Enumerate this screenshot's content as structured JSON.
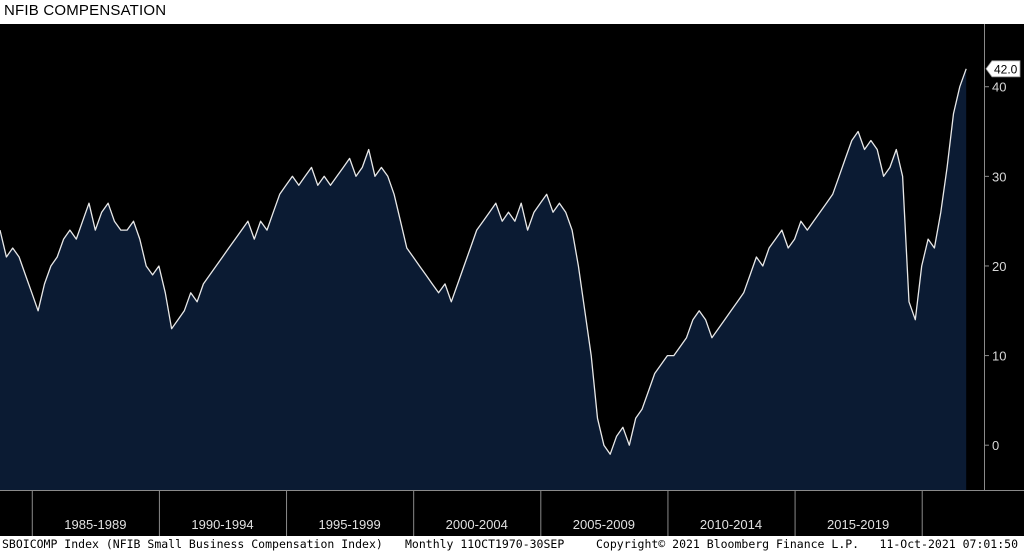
{
  "chart_data": {
    "type": "area",
    "title": "NFIB COMPENSATION",
    "xlabel": "",
    "ylabel": "",
    "ylim": [
      -5,
      47
    ],
    "xlim": [
      1983.75,
      2022.45
    ],
    "y_ticks": [
      0,
      10,
      20,
      30,
      40
    ],
    "y_tick_labels": [
      "0",
      "10",
      "20",
      "30",
      "40"
    ],
    "categories": [
      "1985-1989",
      "1990-1994",
      "1995-1999",
      "2000-2004",
      "2005-2009",
      "2010-2014",
      "2015-2019"
    ],
    "category_ranges": [
      [
        1985,
        1990
      ],
      [
        1990,
        1995
      ],
      [
        1995,
        2000
      ],
      [
        2000,
        2005
      ],
      [
        2005,
        2010
      ],
      [
        2010,
        2015
      ],
      [
        2015,
        2020
      ]
    ],
    "grid": false,
    "legend": "none",
    "last_value_label": "42.0",
    "series": [
      {
        "x": [
          1983.75,
          1984.0,
          1984.25,
          1984.5,
          1984.75,
          1985.0,
          1985.25,
          1985.5,
          1985.75,
          1986.0,
          1986.25,
          1986.5,
          1986.75,
          1987.0,
          1987.25,
          1987.5,
          1987.75,
          1988.0,
          1988.25,
          1988.5,
          1988.75,
          1989.0,
          1989.25,
          1989.5,
          1989.75,
          1990.0,
          1990.25,
          1990.5,
          1990.75,
          1991.0,
          1991.25,
          1991.5,
          1991.75,
          1992.0,
          1992.25,
          1992.5,
          1992.75,
          1993.0,
          1993.25,
          1993.5,
          1993.75,
          1994.0,
          1994.25,
          1994.5,
          1994.75,
          1995.0,
          1995.25,
          1995.5,
          1995.75,
          1996.0,
          1996.25,
          1996.5,
          1996.75,
          1997.0,
          1997.25,
          1997.5,
          1997.75,
          1998.0,
          1998.25,
          1998.5,
          1998.75,
          1999.0,
          1999.25,
          1999.5,
          1999.75,
          2000.0,
          2000.25,
          2000.5,
          2000.75,
          2001.0,
          2001.25,
          2001.5,
          2001.75,
          2002.0,
          2002.25,
          2002.5,
          2002.75,
          2003.0,
          2003.25,
          2003.5,
          2003.75,
          2004.0,
          2004.25,
          2004.5,
          2004.75,
          2005.0,
          2005.25,
          2005.5,
          2005.75,
          2006.0,
          2006.25,
          2006.5,
          2006.75,
          2007.0,
          2007.25,
          2007.5,
          2007.75,
          2008.0,
          2008.25,
          2008.5,
          2008.75,
          2009.0,
          2009.25,
          2009.5,
          2009.75,
          2010.0,
          2010.25,
          2010.5,
          2010.75,
          2011.0,
          2011.25,
          2011.5,
          2011.75,
          2012.0,
          2012.25,
          2012.5,
          2012.75,
          2013.0,
          2013.25,
          2013.5,
          2013.75,
          2014.0,
          2014.25,
          2014.5,
          2014.75,
          2015.0,
          2015.25,
          2015.5,
          2015.75,
          2016.0,
          2016.25,
          2016.5,
          2016.75,
          2017.0,
          2017.25,
          2017.5,
          2017.75,
          2018.0,
          2018.25,
          2018.5,
          2018.75,
          2019.0,
          2019.25,
          2019.5,
          2019.75,
          2020.0,
          2020.25,
          2020.5,
          2020.75,
          2021.0,
          2021.25,
          2021.5,
          2021.75
        ],
        "values": [
          24,
          21,
          22,
          21,
          19,
          17,
          15,
          18,
          20,
          21,
          23,
          24,
          23,
          25,
          27,
          24,
          26,
          27,
          25,
          24,
          24,
          25,
          23,
          20,
          19,
          20,
          17,
          13,
          14,
          15,
          17,
          16,
          18,
          19,
          20,
          21,
          22,
          23,
          24,
          25,
          23,
          25,
          24,
          26,
          28,
          29,
          30,
          29,
          30,
          31,
          29,
          30,
          29,
          30,
          31,
          32,
          30,
          31,
          33,
          30,
          31,
          30,
          28,
          25,
          22,
          21,
          20,
          19,
          18,
          17,
          18,
          16,
          18,
          20,
          22,
          24,
          25,
          26,
          27,
          25,
          26,
          25,
          27,
          24,
          26,
          27,
          28,
          26,
          27,
          26,
          24,
          20,
          15,
          10,
          3,
          0,
          -1,
          1,
          2,
          0,
          3,
          4,
          6,
          8,
          9,
          10,
          10,
          11,
          12,
          14,
          15,
          14,
          12,
          13,
          14,
          15,
          16,
          17,
          19,
          21,
          20,
          22,
          23,
          24,
          22,
          23,
          25,
          24,
          25,
          26,
          27,
          28,
          30,
          32,
          34,
          35,
          33,
          34,
          33,
          30,
          31,
          33,
          30,
          16,
          14,
          20,
          23,
          22,
          26,
          31,
          37,
          40,
          42
        ]
      }
    ]
  },
  "footer": {
    "source": "SBOICOMP Index (NFIB Small Business Compensation Index)",
    "frequency": "Monthly 11OCT1970-30SEP",
    "copyright": "Copyright© 2021 Bloomberg Finance L.P.",
    "timestamp": "11-Oct-2021 07:01:50"
  },
  "colors": {
    "background": "#000000",
    "area_fill": "#0b1b33",
    "line": "#e8e8e8",
    "axis": "#8a8a8a",
    "label_box": "#ffffff"
  }
}
